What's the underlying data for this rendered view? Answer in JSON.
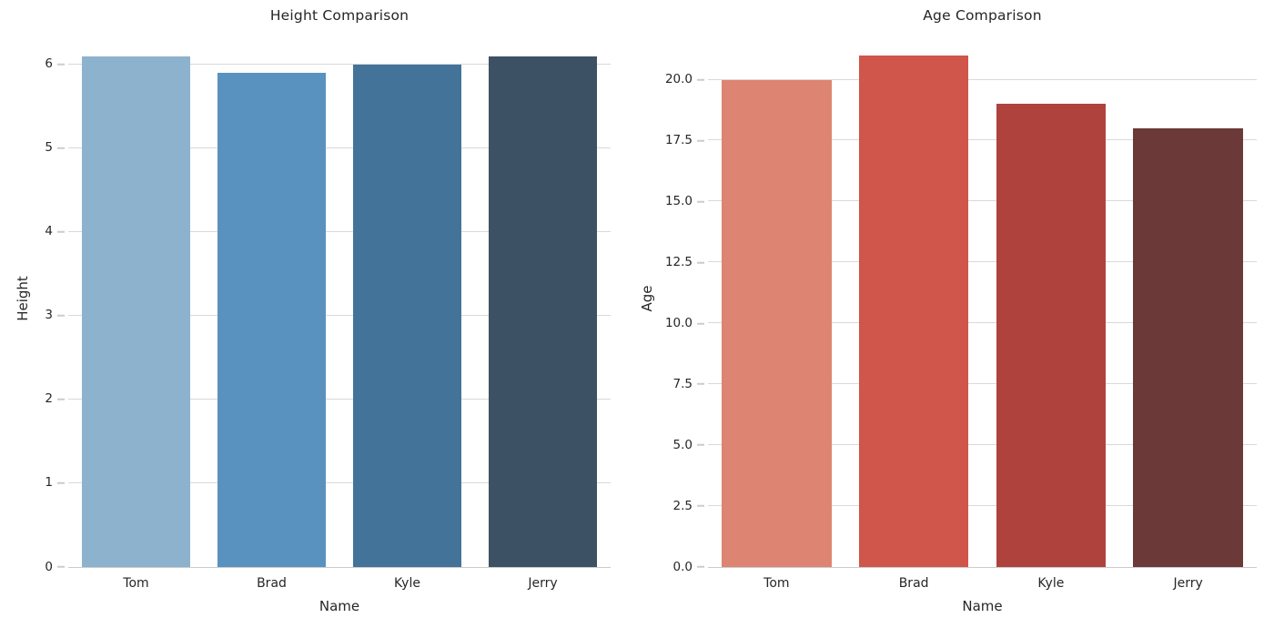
{
  "figure": {
    "background_color": "#ffffff",
    "text_color": "#262626",
    "grid_color": "#d9d9d9",
    "spine_color": "#cccccc"
  },
  "chart_data": [
    {
      "type": "bar",
      "title": "Height Comparison",
      "xlabel": "Name",
      "ylabel": "Height",
      "categories": [
        "Tom",
        "Brad",
        "Kyle",
        "Jerry"
      ],
      "values": [
        6.1,
        5.9,
        6.0,
        6.1
      ],
      "ylim": [
        0,
        6.4
      ],
      "yticks": [
        {
          "value": 0,
          "label": "0"
        },
        {
          "value": 1,
          "label": "1"
        },
        {
          "value": 2,
          "label": "2"
        },
        {
          "value": 3,
          "label": "3"
        },
        {
          "value": 4,
          "label": "4"
        },
        {
          "value": 5,
          "label": "5"
        },
        {
          "value": 6,
          "label": "6"
        }
      ],
      "bar_colors": [
        "#8db2cd",
        "#5a92bf",
        "#44739a",
        "#3d5164"
      ],
      "grid": true,
      "legend_position": "none"
    },
    {
      "type": "bar",
      "title": "Age Comparison",
      "xlabel": "Name",
      "ylabel": "Age",
      "categories": [
        "Tom",
        "Brad",
        "Kyle",
        "Jerry"
      ],
      "values": [
        20,
        21,
        19,
        18
      ],
      "ylim": [
        0,
        22
      ],
      "yticks": [
        {
          "value": 0,
          "label": "0.0"
        },
        {
          "value": 2.5,
          "label": "2.5"
        },
        {
          "value": 5,
          "label": "5.0"
        },
        {
          "value": 7.5,
          "label": "7.5"
        },
        {
          "value": 10,
          "label": "10.0"
        },
        {
          "value": 12.5,
          "label": "12.5"
        },
        {
          "value": 15,
          "label": "15.0"
        },
        {
          "value": 17.5,
          "label": "17.5"
        },
        {
          "value": 20,
          "label": "20.0"
        }
      ],
      "bar_colors": [
        "#dd8472",
        "#d0554a",
        "#b0423e",
        "#6b3a38"
      ],
      "grid": true,
      "legend_position": "none"
    }
  ]
}
